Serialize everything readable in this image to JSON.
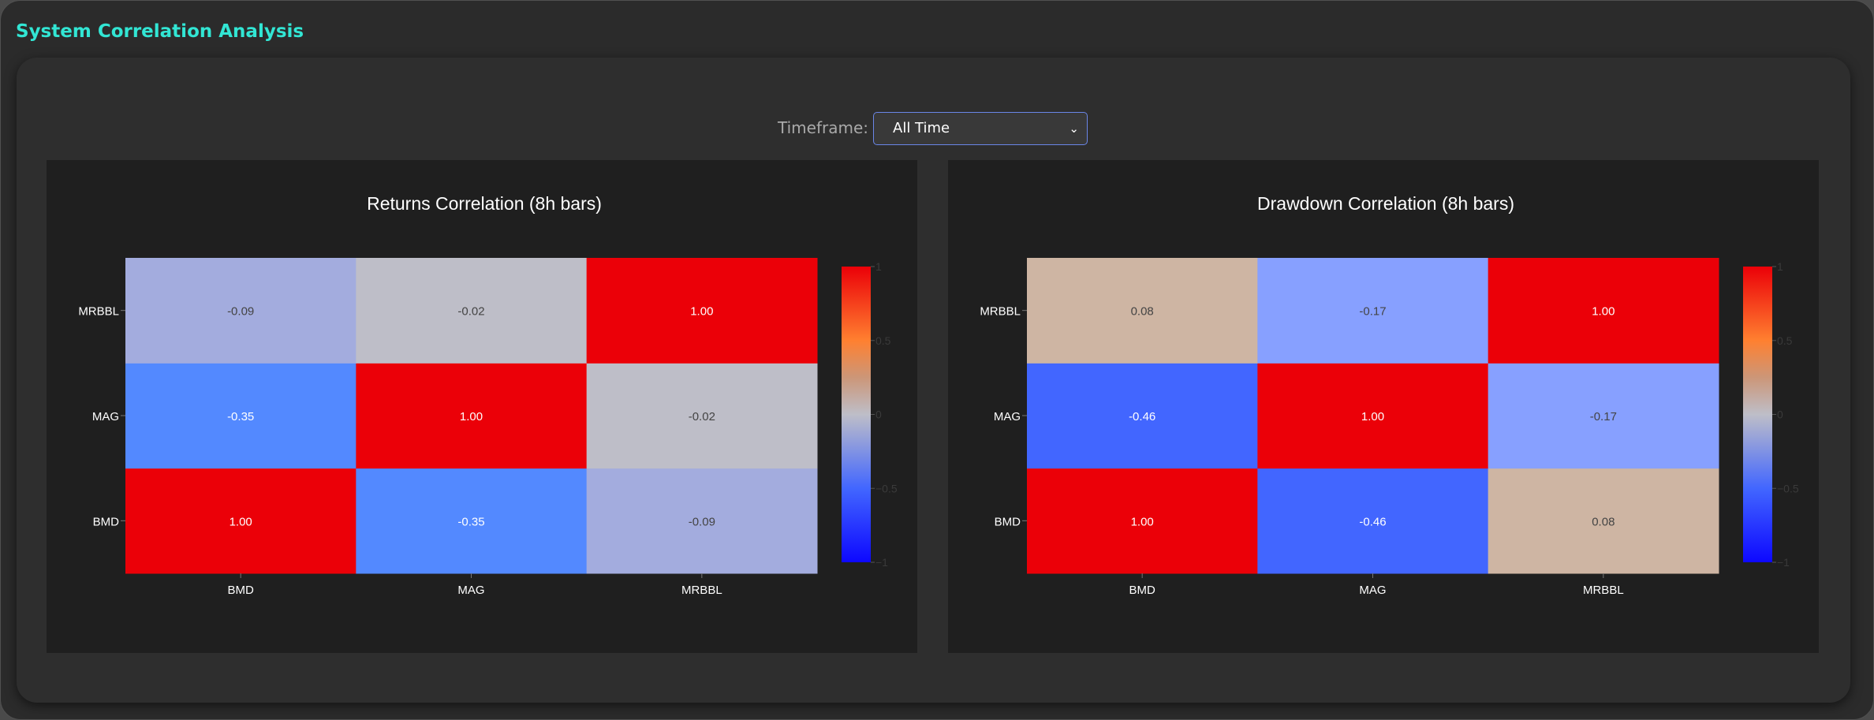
{
  "app": {
    "title": "System Correlation Analysis"
  },
  "timeframe": {
    "label": "Timeframe:",
    "selected": "All Time"
  },
  "colors": {
    "accent": "#32e6d4",
    "background": "#2b2b2b",
    "chart_bg": "#1f1f1f"
  },
  "chart_data": [
    {
      "type": "heatmap",
      "title": "Returns Correlation (8h bars)",
      "x": [
        "BMD",
        "MAG",
        "MRBBL"
      ],
      "y": [
        "BMD",
        "MAG",
        "MRBBL"
      ],
      "z": [
        [
          1.0,
          -0.35,
          -0.09
        ],
        [
          -0.35,
          1.0,
          -0.02
        ],
        [
          -0.09,
          -0.02,
          1.0
        ]
      ],
      "cell_labels": [
        [
          "1.00",
          "-0.35",
          "-0.09"
        ],
        [
          "-0.35",
          "1.00",
          "-0.02"
        ],
        [
          "-0.09",
          "-0.02",
          "1.00"
        ]
      ],
      "zlim": [
        -1,
        1
      ],
      "colorbar_ticks": [
        "1",
        "0.5",
        "0",
        "−0.5",
        "−1"
      ],
      "colorscale": "bwr"
    },
    {
      "type": "heatmap",
      "title": "Drawdown Correlation (8h bars)",
      "x": [
        "BMD",
        "MAG",
        "MRBBL"
      ],
      "y": [
        "BMD",
        "MAG",
        "MRBBL"
      ],
      "z": [
        [
          1.0,
          -0.46,
          0.08
        ],
        [
          -0.46,
          1.0,
          -0.17
        ],
        [
          0.08,
          -0.17,
          1.0
        ]
      ],
      "cell_labels": [
        [
          "1.00",
          "-0.46",
          "0.08"
        ],
        [
          "-0.46",
          "1.00",
          "-0.17"
        ],
        [
          "0.08",
          "-0.17",
          "1.00"
        ]
      ],
      "zlim": [
        -1,
        1
      ],
      "colorbar_ticks": [
        "1",
        "0.5",
        "0",
        "−0.5",
        "−1"
      ],
      "colorscale": "bwr"
    }
  ]
}
